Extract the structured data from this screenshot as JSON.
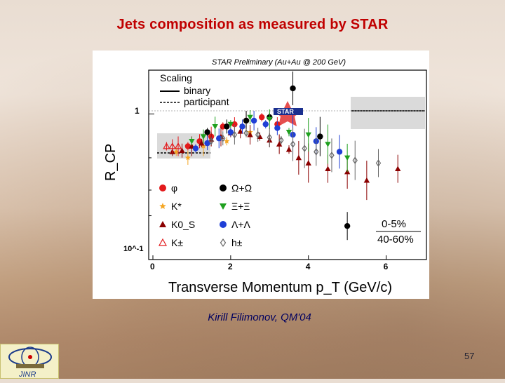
{
  "slide": {
    "title": "Jets composition as measured by STAR",
    "author": "Kirill Filimonov, QM'04",
    "page_number": "57",
    "logo_text": "JINR"
  },
  "colors": {
    "title": "#c00000",
    "phi": "#e31a1c",
    "kstar": "#f5a623",
    "k0s": "#8b0000",
    "kpm": "#e31a1c",
    "omega": "#000000",
    "xi": "#1fa01f",
    "lambda": "#1f3fd6",
    "hpm": "#666666"
  },
  "chart_data": {
    "type": "scatter",
    "title": "STAR Preliminary (Au+Au @ 200 GeV)",
    "xlabel": "Transverse Momentum p_T (GeV/c)",
    "ylabel": "R_CP",
    "xlim": [
      0,
      7
    ],
    "ylim": [
      0.1,
      2
    ],
    "yscale": "log",
    "xticks": [
      "0",
      "2",
      "4",
      "6"
    ],
    "yticks": [
      "10^-1",
      "1"
    ],
    "grid": false,
    "legend_position": "left",
    "scaling_legend": {
      "title": "Scaling",
      "binary": "binary",
      "participant": "participant"
    },
    "centrality_label": {
      "top": "0-5%",
      "bottom": "40-60%"
    },
    "series": [
      {
        "name": "φ",
        "marker": "circle",
        "color": "#e31a1c",
        "points": [
          [
            0.9,
            0.6
          ],
          [
            1.2,
            0.65
          ],
          [
            1.5,
            0.7
          ],
          [
            1.8,
            0.82
          ],
          [
            2.1,
            0.85
          ],
          [
            2.4,
            0.9
          ],
          [
            2.8,
            0.95
          ],
          [
            3.2,
            0.85
          ]
        ]
      },
      {
        "name": "K*",
        "marker": "star",
        "color": "#f5a623",
        "points": [
          [
            0.6,
            0.55
          ],
          [
            0.9,
            0.5
          ],
          [
            1.3,
            0.6
          ],
          [
            1.9,
            0.65
          ],
          [
            2.5,
            0.75
          ]
        ]
      },
      {
        "name": "K0_S",
        "marker": "triangle-up",
        "color": "#8b0000",
        "points": [
          [
            0.5,
            0.55
          ],
          [
            0.75,
            0.56
          ],
          [
            1.0,
            0.6
          ],
          [
            1.25,
            0.63
          ],
          [
            1.5,
            0.67
          ],
          [
            1.75,
            0.7
          ],
          [
            2.0,
            0.74
          ],
          [
            2.25,
            0.76
          ],
          [
            2.5,
            0.72
          ],
          [
            2.75,
            0.7
          ],
          [
            3.0,
            0.66
          ],
          [
            3.25,
            0.62
          ],
          [
            3.5,
            0.57
          ],
          [
            3.75,
            0.5
          ],
          [
            4.0,
            0.46
          ],
          [
            4.5,
            0.42
          ],
          [
            5.0,
            0.4
          ],
          [
            5.5,
            0.35
          ],
          [
            6.3,
            0.42
          ]
        ]
      },
      {
        "name": "K±",
        "marker": "triangle-up-open",
        "color": "#e31a1c",
        "points": [
          [
            0.35,
            0.6
          ],
          [
            0.5,
            0.6
          ],
          [
            0.65,
            0.6
          ]
        ]
      },
      {
        "name": "Ω+Ω",
        "marker": "circle",
        "color": "#000000",
        "points": [
          [
            1.4,
            0.75
          ],
          [
            1.9,
            0.82
          ],
          [
            2.4,
            0.9
          ],
          [
            3.0,
            0.95
          ],
          [
            3.6,
            1.5
          ],
          [
            4.3,
            0.7
          ],
          [
            5.0,
            0.17
          ]
        ]
      },
      {
        "name": "Ξ+Ξ",
        "marker": "triangle-down",
        "color": "#1fa01f",
        "points": [
          [
            1.0,
            0.65
          ],
          [
            1.3,
            0.7
          ],
          [
            1.6,
            0.82
          ],
          [
            2.0,
            0.85
          ],
          [
            2.5,
            0.95
          ],
          [
            3.0,
            0.92
          ],
          [
            3.5,
            0.75
          ],
          [
            4.0,
            0.72
          ],
          [
            4.5,
            0.62
          ],
          [
            5.0,
            0.5
          ]
        ]
      },
      {
        "name": "Λ+Λ",
        "marker": "circle",
        "color": "#1f3fd6",
        "points": [
          [
            1.1,
            0.58
          ],
          [
            1.4,
            0.63
          ],
          [
            1.7,
            0.68
          ],
          [
            2.0,
            0.75
          ],
          [
            2.3,
            0.82
          ],
          [
            2.6,
            0.9
          ],
          [
            2.9,
            0.85
          ],
          [
            3.2,
            0.8
          ],
          [
            3.6,
            0.72
          ],
          [
            4.2,
            0.65
          ],
          [
            4.8,
            0.55
          ]
        ]
      },
      {
        "name": "h±",
        "marker": "diamond-open",
        "color": "#666666",
        "points": [
          [
            1.5,
            0.65
          ],
          [
            1.8,
            0.68
          ],
          [
            2.1,
            0.72
          ],
          [
            2.4,
            0.74
          ],
          [
            2.7,
            0.72
          ],
          [
            3.0,
            0.69
          ],
          [
            3.3,
            0.66
          ],
          [
            3.6,
            0.62
          ],
          [
            3.9,
            0.58
          ],
          [
            4.2,
            0.55
          ],
          [
            4.6,
            0.52
          ],
          [
            5.2,
            0.48
          ],
          [
            5.8,
            0.46
          ]
        ]
      }
    ]
  }
}
